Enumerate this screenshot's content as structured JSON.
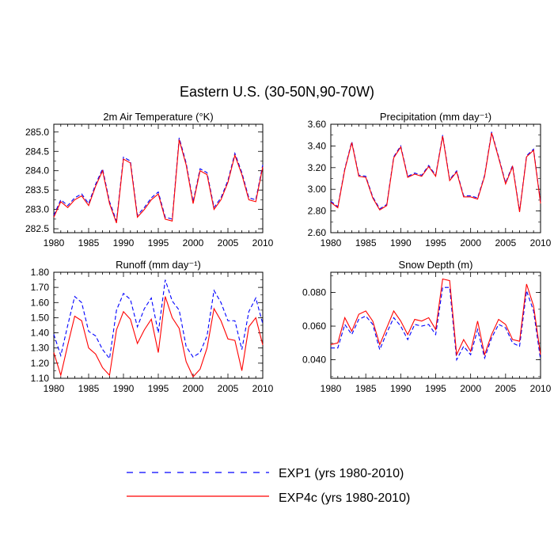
{
  "page": {
    "title": "Eastern U.S. (30-50N,90-70W)"
  },
  "legend": {
    "exp1": "EXP1 (yrs 1980-2010)",
    "exp4c": "EXP4c (yrs 1980-2010)"
  },
  "colors": {
    "exp1": "#0000ff",
    "exp4c": "#ff0000",
    "axis": "#000000"
  },
  "chart_data": [
    {
      "type": "line",
      "title": "2m Air Temperature (°K)",
      "x": [
        1980,
        1981,
        1982,
        1983,
        1984,
        1985,
        1986,
        1987,
        1988,
        1989,
        1990,
        1991,
        1992,
        1993,
        1994,
        1995,
        1996,
        1997,
        1998,
        1999,
        2000,
        2001,
        2002,
        2003,
        2004,
        2005,
        2006,
        2007,
        2008,
        2009,
        2010
      ],
      "xlim": [
        1980,
        2010
      ],
      "xticks": [
        "1980",
        "1985",
        "1990",
        "1995",
        "2000",
        "2005",
        "2010"
      ],
      "ylim": [
        282.4,
        285.2
      ],
      "yticks": [
        "282.5",
        "283.0",
        "283.5",
        "284.0",
        "284.5",
        "285.0"
      ],
      "series": [
        {
          "name": "EXP1",
          "values": [
            282.85,
            283.25,
            283.1,
            283.3,
            283.4,
            283.15,
            283.65,
            284.05,
            283.2,
            282.7,
            284.35,
            284.25,
            282.85,
            283.05,
            283.3,
            283.45,
            282.8,
            282.75,
            284.85,
            284.2,
            283.2,
            284.05,
            283.95,
            283.05,
            283.3,
            283.75,
            284.45,
            283.95,
            283.3,
            283.25,
            284.15
          ]
        },
        {
          "name": "EXP4c",
          "values": [
            282.8,
            283.2,
            283.05,
            283.25,
            283.35,
            283.1,
            283.6,
            284.0,
            283.15,
            282.65,
            284.3,
            284.2,
            282.8,
            283.0,
            283.25,
            283.4,
            282.75,
            282.7,
            284.8,
            284.15,
            283.15,
            284.0,
            283.9,
            283.0,
            283.25,
            283.7,
            284.4,
            283.9,
            283.25,
            283.2,
            284.1
          ]
        }
      ]
    },
    {
      "type": "line",
      "title": "Precipitation (mm day⁻¹)",
      "x": [
        1980,
        1981,
        1982,
        1983,
        1984,
        1985,
        1986,
        1987,
        1988,
        1989,
        1990,
        1991,
        1992,
        1993,
        1994,
        1995,
        1996,
        1997,
        1998,
        1999,
        2000,
        2001,
        2002,
        2003,
        2004,
        2005,
        2006,
        2007,
        2008,
        2009,
        2010
      ],
      "xlim": [
        1980,
        2010
      ],
      "xticks": [
        "1980",
        "1985",
        "1990",
        "1995",
        "2000",
        "2005",
        "2010"
      ],
      "ylim": [
        2.6,
        3.6
      ],
      "yticks": [
        "2.60",
        "2.80",
        "3.00",
        "3.20",
        "3.40",
        "3.60"
      ],
      "series": [
        {
          "name": "EXP1",
          "values": [
            2.89,
            2.84,
            3.19,
            3.44,
            3.13,
            3.12,
            2.93,
            2.82,
            2.86,
            3.3,
            3.4,
            3.12,
            3.15,
            3.13,
            3.22,
            3.13,
            3.5,
            3.09,
            3.17,
            2.94,
            2.94,
            2.92,
            3.13,
            3.53,
            3.3,
            3.06,
            3.22,
            2.8,
            3.31,
            3.37,
            2.88
          ]
        },
        {
          "name": "EXP4c",
          "values": [
            2.88,
            2.83,
            3.18,
            3.43,
            3.12,
            3.11,
            2.92,
            2.81,
            2.85,
            3.29,
            3.39,
            3.11,
            3.14,
            3.12,
            3.21,
            3.12,
            3.49,
            3.08,
            3.16,
            2.93,
            2.93,
            2.91,
            3.12,
            3.52,
            3.29,
            3.05,
            3.21,
            2.79,
            3.3,
            3.36,
            2.87
          ]
        }
      ]
    },
    {
      "type": "line",
      "title": "Runoff (mm day⁻¹)",
      "x": [
        1980,
        1981,
        1982,
        1983,
        1984,
        1985,
        1986,
        1987,
        1988,
        1989,
        1990,
        1991,
        1992,
        1993,
        1994,
        1995,
        1996,
        1997,
        1998,
        1999,
        2000,
        2001,
        2002,
        2003,
        2004,
        2005,
        2006,
        2007,
        2008,
        2009,
        2010
      ],
      "xlim": [
        1980,
        2010
      ],
      "xticks": [
        "1980",
        "1985",
        "1990",
        "1995",
        "2000",
        "2005",
        "2010"
      ],
      "ylim": [
        1.1,
        1.8
      ],
      "yticks": [
        "1.10",
        "1.20",
        "1.30",
        "1.40",
        "1.50",
        "1.60",
        "1.70",
        "1.80"
      ],
      "series": [
        {
          "name": "EXP1",
          "values": [
            1.39,
            1.25,
            1.45,
            1.64,
            1.6,
            1.41,
            1.38,
            1.29,
            1.23,
            1.55,
            1.66,
            1.62,
            1.44,
            1.56,
            1.63,
            1.4,
            1.75,
            1.61,
            1.55,
            1.31,
            1.24,
            1.27,
            1.38,
            1.68,
            1.6,
            1.48,
            1.48,
            1.29,
            1.54,
            1.63,
            1.46
          ]
        },
        {
          "name": "EXP4c",
          "values": [
            1.27,
            1.12,
            1.32,
            1.51,
            1.48,
            1.3,
            1.26,
            1.17,
            1.12,
            1.42,
            1.54,
            1.49,
            1.33,
            1.42,
            1.49,
            1.27,
            1.64,
            1.5,
            1.43,
            1.21,
            1.11,
            1.16,
            1.3,
            1.56,
            1.48,
            1.36,
            1.35,
            1.15,
            1.44,
            1.5,
            1.32
          ]
        }
      ]
    },
    {
      "type": "line",
      "title": "Snow Depth (m)",
      "x": [
        1980,
        1981,
        1982,
        1983,
        1984,
        1985,
        1986,
        1987,
        1988,
        1989,
        1990,
        1991,
        1992,
        1993,
        1994,
        1995,
        1996,
        1997,
        1998,
        1999,
        2000,
        2001,
        2002,
        2003,
        2004,
        2005,
        2006,
        2007,
        2008,
        2009,
        2010
      ],
      "xlim": [
        1980,
        2010
      ],
      "xticks": [
        "1980",
        "1985",
        "1990",
        "1995",
        "2000",
        "2005",
        "2010"
      ],
      "ylim": [
        0.029,
        0.092
      ],
      "yticks": [
        "0.040",
        "0.060",
        "0.080"
      ],
      "series": [
        {
          "name": "EXP1",
          "values": [
            0.047,
            0.047,
            0.061,
            0.055,
            0.064,
            0.066,
            0.061,
            0.046,
            0.056,
            0.065,
            0.06,
            0.052,
            0.061,
            0.06,
            0.061,
            0.055,
            0.083,
            0.083,
            0.04,
            0.048,
            0.043,
            0.058,
            0.041,
            0.053,
            0.061,
            0.059,
            0.05,
            0.048,
            0.081,
            0.069,
            0.04
          ]
        },
        {
          "name": "EXP4c",
          "values": [
            0.049,
            0.05,
            0.065,
            0.057,
            0.067,
            0.069,
            0.063,
            0.049,
            0.059,
            0.069,
            0.063,
            0.055,
            0.064,
            0.063,
            0.065,
            0.058,
            0.088,
            0.087,
            0.043,
            0.052,
            0.045,
            0.063,
            0.043,
            0.055,
            0.064,
            0.061,
            0.052,
            0.051,
            0.085,
            0.072,
            0.043
          ]
        }
      ]
    }
  ]
}
